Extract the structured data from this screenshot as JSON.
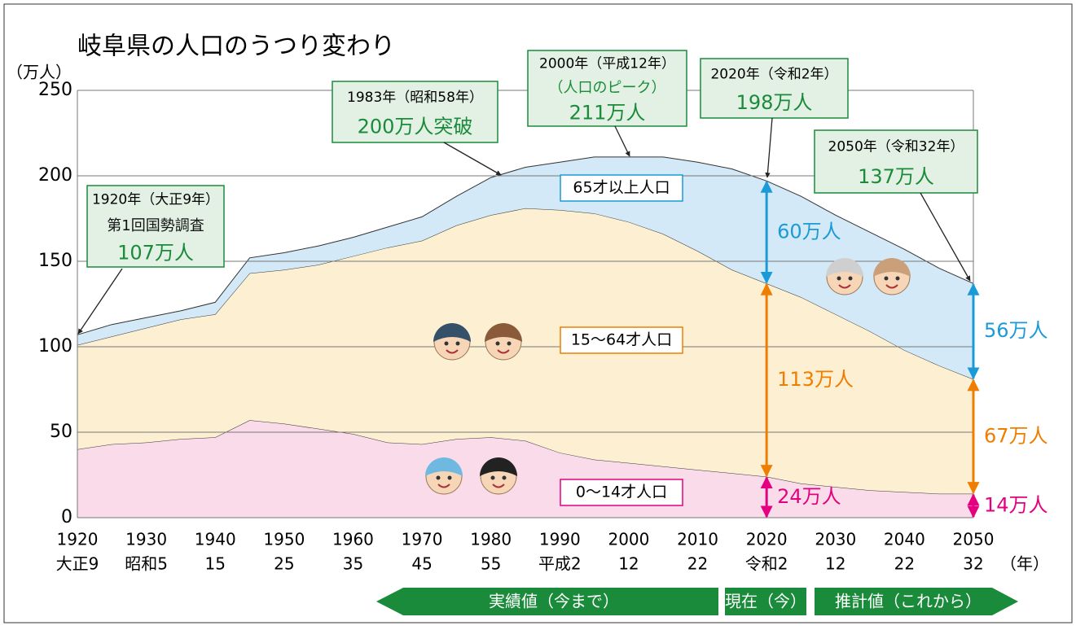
{
  "chart_data": {
    "type": "stacked_area",
    "title": "岐阜県の人口のうつり変わり",
    "y_label": "（万人）",
    "x_unit": "（年）",
    "x": [
      1920,
      1925,
      1930,
      1935,
      1940,
      1945,
      1950,
      1955,
      1960,
      1965,
      1970,
      1975,
      1980,
      1985,
      1990,
      1995,
      2000,
      2005,
      2010,
      2015,
      2020,
      2025,
      2030,
      2035,
      2040,
      2045,
      2050
    ],
    "xlim": [
      1920,
      2050
    ],
    "xticks": [
      1920,
      1930,
      1940,
      1950,
      1960,
      1970,
      1980,
      1990,
      2000,
      2010,
      2020,
      2030,
      2040,
      2050
    ],
    "era_labels": [
      "大正9",
      "昭和5",
      "15",
      "25",
      "35",
      "45",
      "55",
      "平成2",
      "12",
      "22",
      "令和2",
      "12",
      "22",
      "32"
    ],
    "ylim": [
      0,
      250
    ],
    "yticks": [
      0,
      50,
      100,
      150,
      200,
      250
    ],
    "grid": true,
    "series": [
      {
        "name": "0〜14才人口",
        "color": "#f9dbe9",
        "arrow_color": "#e4007f",
        "values": [
          40,
          43,
          44,
          46,
          47,
          57,
          55,
          52,
          49,
          44,
          43,
          46,
          47,
          45,
          38,
          34,
          32,
          30,
          28,
          26,
          24,
          20,
          18,
          16,
          15,
          14,
          14
        ],
        "value_labels": [
          null,
          null,
          null,
          null,
          null,
          null,
          null,
          null,
          null,
          null,
          null,
          null,
          null,
          null,
          null,
          null,
          null,
          null,
          null,
          null,
          "24万人",
          null,
          null,
          null,
          null,
          null,
          "14万人"
        ]
      },
      {
        "name": "15〜64才人口",
        "color": "#fdf0d2",
        "arrow_color": "#ef7d00",
        "values": [
          61,
          63,
          67,
          70,
          72,
          86,
          90,
          96,
          104,
          114,
          119,
          125,
          130,
          136,
          142,
          144,
          141,
          136,
          128,
          119,
          113,
          109,
          101,
          93,
          83,
          75,
          67
        ],
        "value_labels": [
          null,
          null,
          null,
          null,
          null,
          null,
          null,
          null,
          null,
          null,
          null,
          null,
          null,
          null,
          null,
          null,
          null,
          null,
          null,
          null,
          "113万人",
          null,
          null,
          null,
          null,
          null,
          "67万人"
        ]
      },
      {
        "name": "65才以上人口",
        "color": "#d3e9f7",
        "arrow_color": "#1a9bd7",
        "values": [
          6,
          7,
          6,
          5,
          7,
          9,
          10,
          11,
          11,
          12,
          14,
          17,
          22,
          24,
          28,
          33,
          38,
          45,
          52,
          59,
          60,
          59,
          58,
          58,
          59,
          57,
          56
        ],
        "value_labels": [
          null,
          null,
          null,
          null,
          null,
          null,
          null,
          null,
          null,
          null,
          null,
          null,
          null,
          null,
          null,
          null,
          null,
          null,
          null,
          null,
          "60万人",
          null,
          null,
          null,
          null,
          null,
          "56万人"
        ]
      }
    ],
    "annotations": [
      {
        "label": "1920年（大正9年）",
        "note": "第1回国勢調査",
        "value": "107万人"
      },
      {
        "label": "1983年（昭和58年）",
        "value": "200万人突破"
      },
      {
        "label": "2000年（平成12年）",
        "note": "（人口のピーク）",
        "value": "211万人"
      },
      {
        "label": "2020年（令和2年）",
        "value": "198万人"
      },
      {
        "label": "2050年（令和32年）",
        "value": "137万人"
      }
    ],
    "timeline": [
      "実績値（今まで）",
      "現在（今）",
      "推計値（これから）"
    ]
  }
}
